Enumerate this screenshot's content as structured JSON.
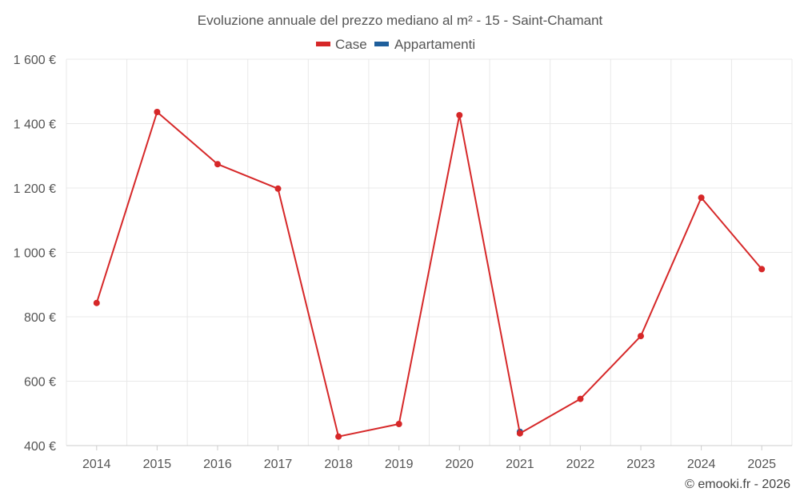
{
  "chart_data": {
    "type": "line",
    "title": "Evoluzione annuale del prezzo mediano al m² - 15 - Saint-Chamant",
    "categories": [
      "2014",
      "2015",
      "2016",
      "2017",
      "2018",
      "2019",
      "2020",
      "2021",
      "2022",
      "2023",
      "2024",
      "2025"
    ],
    "series": [
      {
        "name": "Case",
        "color": "#d62728",
        "values": [
          843,
          1436,
          1274,
          1198,
          428,
          467,
          1426,
          438,
          545,
          740,
          1170,
          948
        ]
      },
      {
        "name": "Appartamenti",
        "color": "#1f5f9c",
        "values": [
          null,
          null,
          null,
          null,
          null,
          null,
          null,
          443,
          null,
          null,
          null,
          null
        ]
      }
    ],
    "y_ticks": [
      "400 €",
      "600 €",
      "800 €",
      "1 000 €",
      "1 200 €",
      "1 400 €",
      "1 600 €"
    ],
    "y_tick_values": [
      400,
      600,
      800,
      1000,
      1200,
      1400,
      1600
    ],
    "ylim": [
      400,
      1600
    ],
    "xlabel": "",
    "ylabel": "",
    "grid": true,
    "legend_position": "top-center"
  },
  "credit": "© emooki.fr - 2026"
}
